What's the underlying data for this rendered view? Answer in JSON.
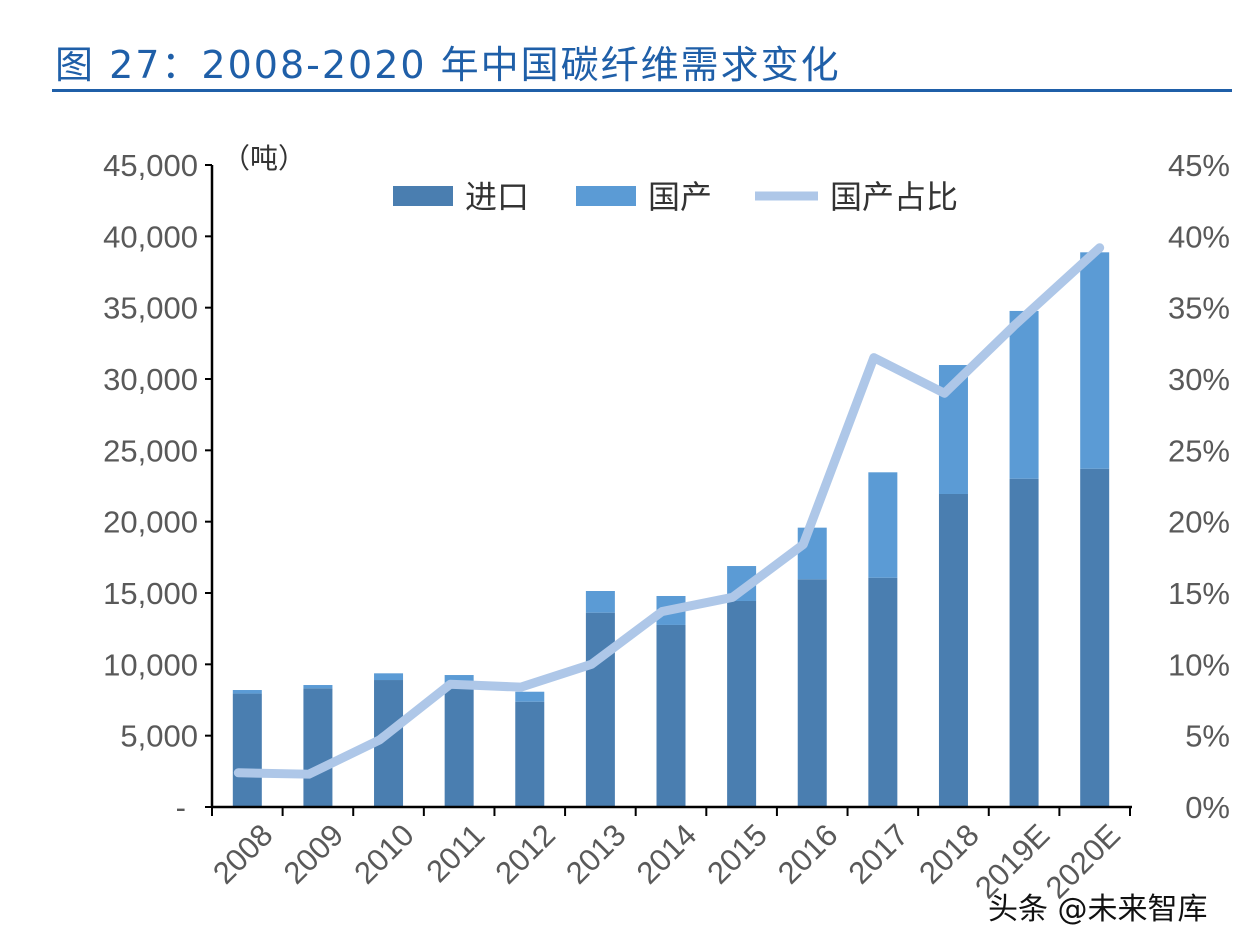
{
  "title": "图 27：2008-2020 年中国碳纤维需求变化",
  "watermark": "头条 @未来智库",
  "chart_data": {
    "type": "bar",
    "stacked": true,
    "title": "图 27：2008-2020 年中国碳纤维需求变化",
    "unit_label": "（吨）",
    "categories": [
      "2008",
      "2009",
      "2010",
      "2011",
      "2012",
      "2013",
      "2014",
      "2015",
      "2016",
      "2017",
      "2018",
      "2019E",
      "2020E"
    ],
    "series": [
      {
        "name": "进口",
        "type": "bar",
        "axis": "left",
        "color": "#4a7eb0",
        "values": [
          7950,
          8320,
          8900,
          8450,
          7380,
          13620,
          12760,
          14440,
          15960,
          16070,
          21940,
          23010,
          23710
        ]
      },
      {
        "name": "国产",
        "type": "bar",
        "axis": "left",
        "color": "#5b9bd5",
        "values": [
          250,
          230,
          470,
          800,
          700,
          1520,
          2030,
          2450,
          3620,
          7390,
          9040,
          11760,
          15170
        ]
      },
      {
        "name": "国产占比",
        "type": "line",
        "axis": "right",
        "color": "#aec7e8",
        "values": [
          2.4,
          2.3,
          4.7,
          8.6,
          8.4,
          10.0,
          13.7,
          14.7,
          18.4,
          31.5,
          29.0,
          33.8,
          39.2
        ]
      }
    ],
    "y_left": {
      "range": [
        0,
        45000
      ],
      "ticks": [
        "-",
        "5,000",
        "10,000",
        "15,000",
        "20,000",
        "25,000",
        "30,000",
        "35,000",
        "40,000",
        "45,000"
      ]
    },
    "y_right": {
      "range": [
        0,
        45
      ],
      "ticks": [
        "0%",
        "5%",
        "10%",
        "15%",
        "20%",
        "25%",
        "30%",
        "35%",
        "40%",
        "45%"
      ]
    },
    "grid": false,
    "legend": "top"
  }
}
